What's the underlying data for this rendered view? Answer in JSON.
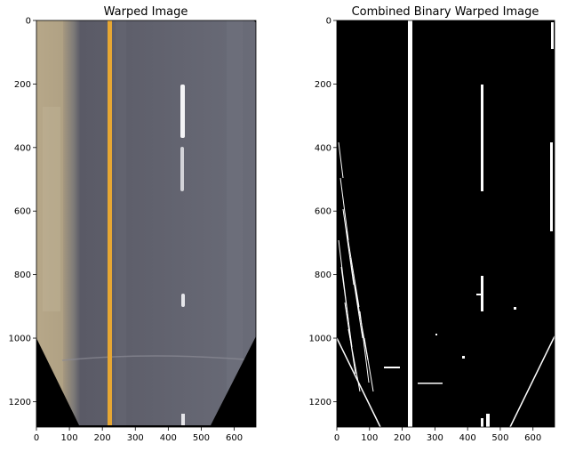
{
  "panels": [
    {
      "title": "Warped Image",
      "xticks": [
        "0",
        "100",
        "200",
        "300",
        "400",
        "500",
        "600"
      ],
      "yticks": [
        "0",
        "200",
        "400",
        "600",
        "800",
        "1000",
        "1200"
      ],
      "xlim": [
        0,
        666
      ],
      "ylim": [
        1280,
        0
      ]
    },
    {
      "title": "Combined Binary Warped Image",
      "xticks": [
        "0",
        "100",
        "200",
        "300",
        "400",
        "500",
        "600"
      ],
      "yticks": [
        "0",
        "200",
        "400",
        "600",
        "800",
        "1000",
        "1200"
      ],
      "xlim": [
        0,
        666
      ],
      "ylim": [
        1280,
        0
      ]
    }
  ],
  "colors": {
    "road": "#5f6070",
    "shoulder": "#a89a80",
    "yellow_line": "#e7a733",
    "white_line": "#ffffff",
    "black": "#000000"
  }
}
